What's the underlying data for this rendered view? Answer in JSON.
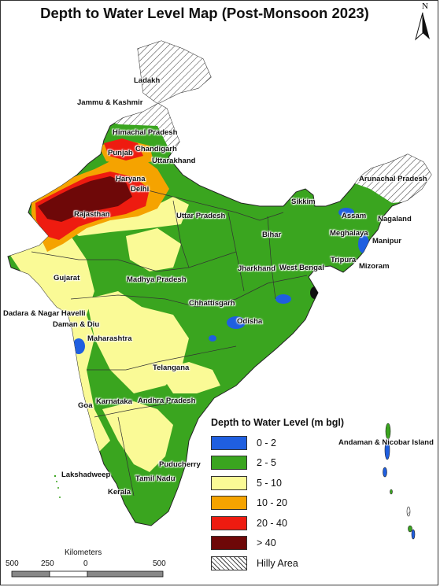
{
  "title": "Depth to Water Level Map (Post-Monsoon 2023)",
  "north_label": "N",
  "legend": {
    "title": "Depth to Water Level (m bgl)",
    "items": [
      {
        "label": "0 - 2",
        "color": "#1f5fe0"
      },
      {
        "label": "2 - 5",
        "color": "#3aa51f"
      },
      {
        "label": "5 - 10",
        "color": "#fafa96"
      },
      {
        "label": "10 - 20",
        "color": "#f5a300"
      },
      {
        "label": "20 - 40",
        "color": "#ee1b10"
      },
      {
        "label": "> 40",
        "color": "#6e0808"
      },
      {
        "label": "Hilly Area",
        "color": "hatched"
      }
    ]
  },
  "scale_bar": {
    "unit": "Kilometers",
    "ticks": [
      "500",
      "250",
      "0",
      "500"
    ]
  },
  "places": [
    "Ladakh",
    "Jammu & Kashmir",
    "Himachal Pradesh",
    "Punjab",
    "Chandigarh",
    "Uttarakhand",
    "Haryana",
    "Delhi",
    "Arunachal Pradesh",
    "Sikkim",
    "Assam",
    "Nagaland",
    "Rajasthan",
    "Uttar Pradesh",
    "Bihar",
    "Meghalaya",
    "Manipur",
    "Tripura",
    "Mizoram",
    "Jharkhand",
    "West Bengal",
    "Gujarat",
    "Madhya Pradesh",
    "Dadara & Nagar Havelli",
    "Daman & Diu",
    "Chhattisgarh",
    "Odisha",
    "Maharashtra",
    "Telangana",
    "Goa",
    "Karnataka",
    "Andhra Pradesh",
    "Andaman & Nicobar Island",
    "Puducherry",
    "Lakshadweep",
    "Tamil Nadu",
    "Kerala"
  ]
}
